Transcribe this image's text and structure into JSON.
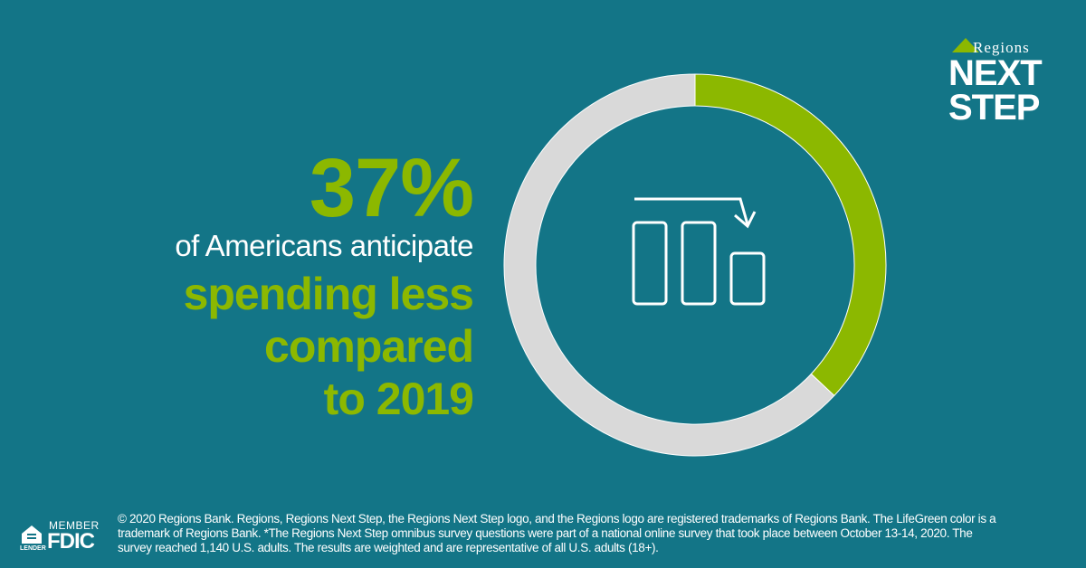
{
  "headline": {
    "percent": "37%",
    "subtitle": "of Americans anticipate",
    "highlight_lines": [
      "spending less",
      "compared",
      "to 2019"
    ]
  },
  "logo": {
    "brand": "Regions",
    "product_line1": "NEXT",
    "product_line2": "STEP"
  },
  "fdic": {
    "member": "MEMBER",
    "fdic": "FDIC",
    "equal_housing": "LENDER"
  },
  "footer": {
    "lines": [
      "© 2020 Regions Bank. Regions, Regions Next Step, the Regions Next Step logo, and the Regions logo are registered trademarks of Regions Bank. The LifeGreen color is a",
      "trademark of Regions Bank. *The Regions Next Step omnibus survey questions were part of a national online survey that took place between October 13-14, 2020. The",
      "survey reached 1,140 U.S. adults. The results are weighted and are representative of all U.S. adults (18+)."
    ]
  },
  "colors": {
    "background": "#137587",
    "accent": "#8cb800",
    "remainder": "#d9d9d9"
  },
  "icon": "bar-chart-decreasing-icon",
  "chart_data": {
    "type": "pie",
    "variant": "donut",
    "values": [
      37,
      63
    ],
    "colors": [
      "#8cb800",
      "#d9d9d9"
    ],
    "start": "top, clockwise"
  }
}
